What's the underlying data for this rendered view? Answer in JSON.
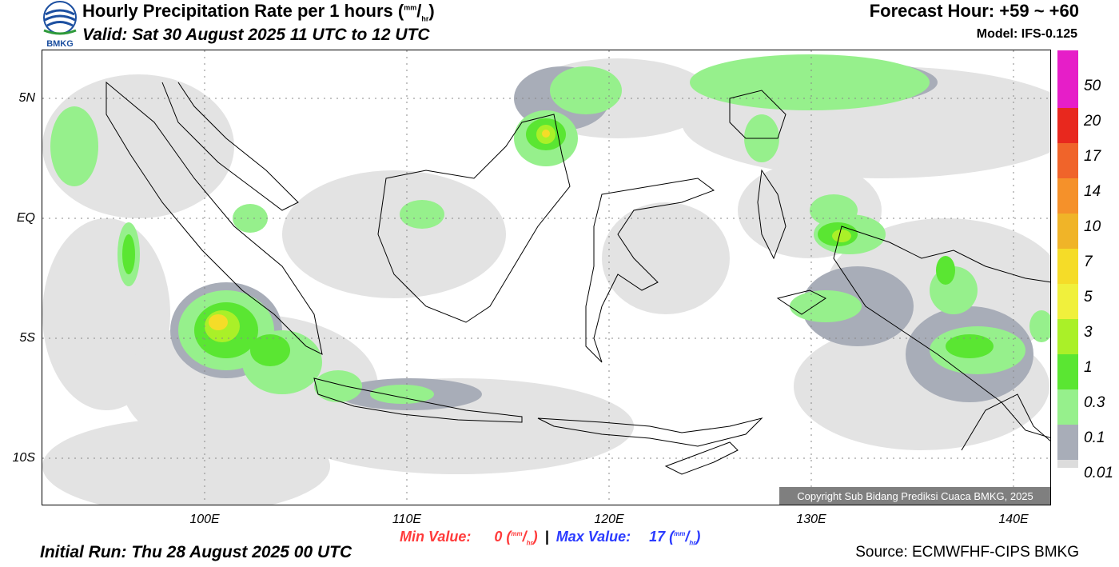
{
  "header": {
    "title": "Hourly Precipitation Rate per 1 hours (",
    "title_unit_num": "mm",
    "title_unit_den": "hr",
    "title_close": ")",
    "valid": "Valid: Sat 30 August 2025 11 UTC to 12 UTC",
    "forecast_hour": "Forecast Hour: +59 ~ +60",
    "model": "Model: IFS-0.125"
  },
  "logo": {
    "text": "BMKG",
    "icon": "bmkg-globe-logo"
  },
  "map": {
    "lat_labels": [
      "5N",
      "EQ",
      "5S",
      "10S"
    ],
    "lon_labels": [
      "100E",
      "110E",
      "120E",
      "130E",
      "140E"
    ],
    "copyright": "Copyright Sub Bidang Prediksi Cuaca BMKG, 2025"
  },
  "colorbar": {
    "labels": [
      "50",
      "20",
      "17",
      "14",
      "10",
      "7",
      "5",
      "3",
      "1",
      "0.3",
      "0.1",
      "0.01"
    ],
    "colors": [
      "#e61ec8",
      "#e8281e",
      "#f0642a",
      "#f5912a",
      "#f0b428",
      "#f5dc28",
      "#f0f03c",
      "#aaf028",
      "#5ae632",
      "#96f08c",
      "#a8adb8",
      "#dcdcdc",
      "#eaeaea"
    ]
  },
  "footer": {
    "min_label": "Min Value:",
    "min_value": "0",
    "max_label": "Max Value:",
    "max_value": "17",
    "unit_num": "mm",
    "unit_den": "hr",
    "separator": "|",
    "initial_run": "Initial Run: Thu 28 August 2025 00 UTC",
    "source": "Source: ECMWFHF-CIPS BMKG"
  }
}
